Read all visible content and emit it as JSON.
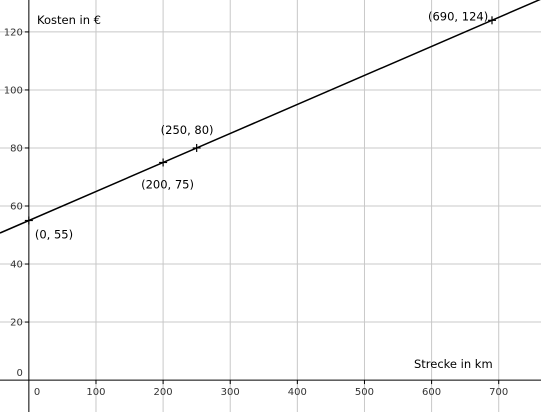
{
  "chart_data": {
    "type": "line",
    "title": "",
    "xlabel": "Strecke in km",
    "ylabel": "Kosten in €",
    "xlim": [
      -43,
      763
    ],
    "ylim": [
      -11,
      131
    ],
    "grid": true,
    "x_ticks": [
      0,
      100,
      200,
      300,
      400,
      500,
      600,
      700
    ],
    "y_ticks": [
      0,
      20,
      40,
      60,
      80,
      100,
      120
    ],
    "series": [
      {
        "x": [
          -43,
          763
        ],
        "y": [
          50.7,
          131.3
        ]
      }
    ],
    "points": [
      {
        "x": 0,
        "y": 55,
        "label": "(0, 55)"
      },
      {
        "x": 200,
        "y": 75,
        "label": "(200, 75)"
      },
      {
        "x": 250,
        "y": 80,
        "label": "(250, 80)"
      },
      {
        "x": 690,
        "y": 124,
        "label": "(690, 124)"
      }
    ]
  }
}
